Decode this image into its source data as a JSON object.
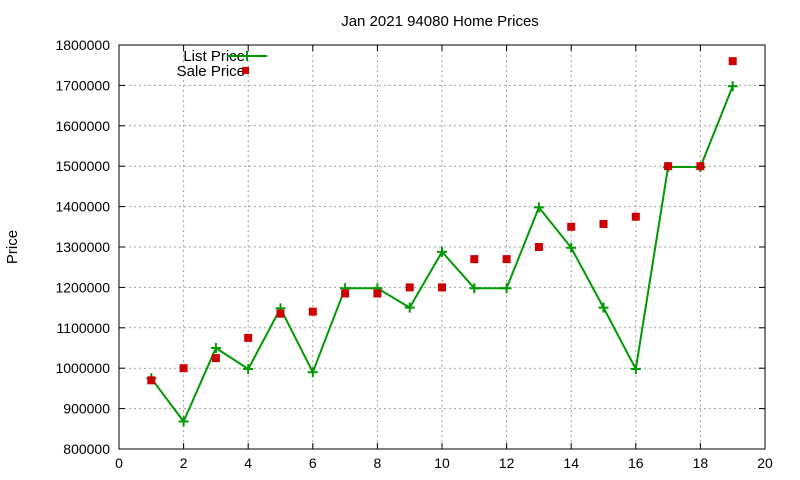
{
  "chart_data": {
    "type": "line",
    "title": "Jan 2021 94080 Home Prices",
    "xlabel": "",
    "ylabel": "Price",
    "xlim": [
      0,
      20
    ],
    "ylim": [
      800000,
      1800000
    ],
    "xticks": [
      0,
      2,
      4,
      6,
      8,
      10,
      12,
      14,
      16,
      18,
      20
    ],
    "yticks": [
      800000,
      900000,
      1000000,
      1100000,
      1200000,
      1300000,
      1400000,
      1500000,
      1600000,
      1700000,
      1800000
    ],
    "grid": true,
    "legend_position": "top-left",
    "series": [
      {
        "name": "List Price",
        "style": "line-with-plus-markers",
        "color": "#009900",
        "x": [
          1,
          2,
          3,
          4,
          5,
          6,
          7,
          8,
          9,
          10,
          11,
          12,
          13,
          14,
          15,
          16,
          17,
          18,
          19
        ],
        "y": [
          975000,
          868000,
          1050000,
          998000,
          1148000,
          990000,
          1198000,
          1198000,
          1150000,
          1288000,
          1198000,
          1198000,
          1398000,
          1298000,
          1150000,
          998000,
          1498000,
          1498000,
          1698000
        ]
      },
      {
        "name": "Sale Price",
        "style": "square-markers",
        "color": "#cc0000",
        "x": [
          1,
          2,
          3,
          4,
          5,
          6,
          7,
          8,
          9,
          10,
          11,
          12,
          13,
          14,
          15,
          16,
          17,
          18,
          19
        ],
        "y": [
          970000,
          1000000,
          1025000,
          1075000,
          1135000,
          1140000,
          1185000,
          1185000,
          1200000,
          1200000,
          1270000,
          1270000,
          1300000,
          1350000,
          1357000,
          1375000,
          1500000,
          1500000,
          1760000
        ]
      }
    ]
  }
}
